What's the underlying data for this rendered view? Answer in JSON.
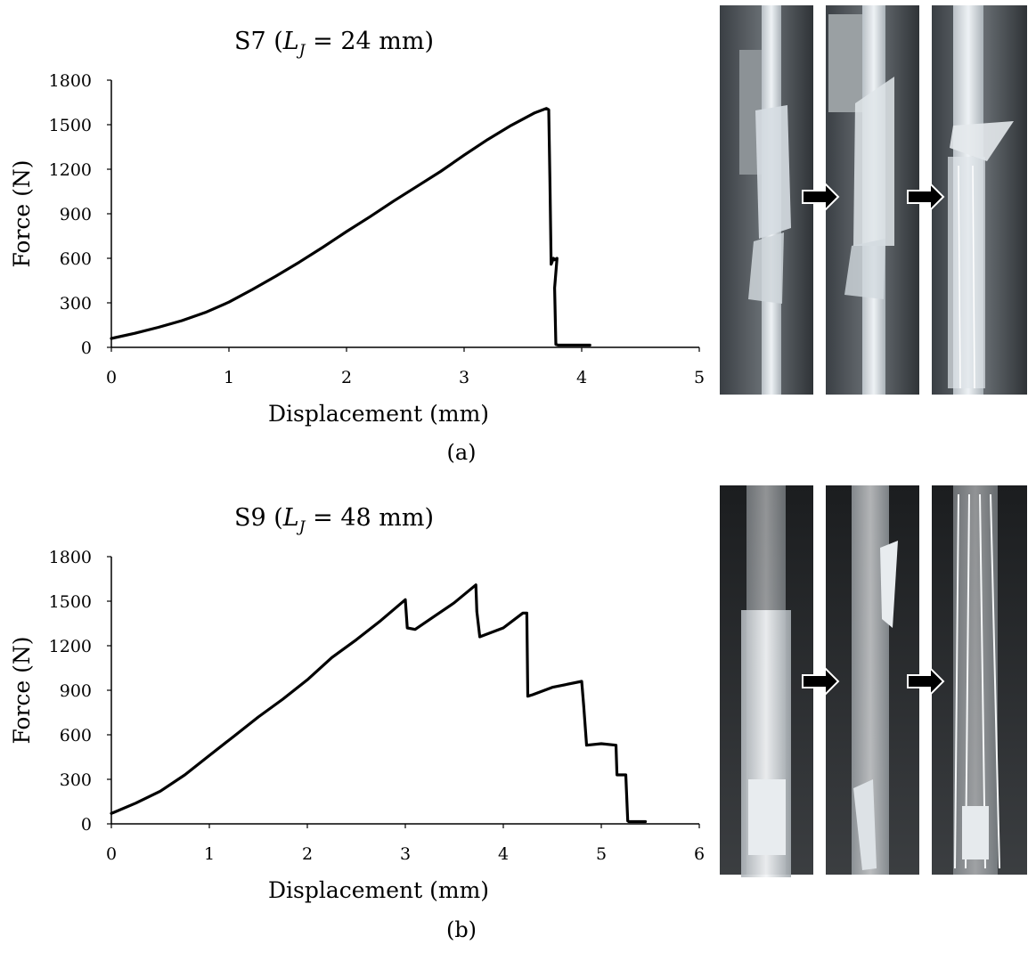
{
  "chart_data": [
    {
      "type": "line",
      "title_main": "S7 (",
      "title_var": "L",
      "title_sub": "J",
      "title_rest": " = 24 mm)",
      "xlabel": "Displacement (mm)",
      "ylabel": "Force (N)",
      "xlim": [
        0,
        5
      ],
      "ylim": [
        0,
        1800
      ],
      "xticks": [
        "0",
        "1",
        "2",
        "3",
        "4",
        "5"
      ],
      "yticks": [
        "0",
        "300",
        "600",
        "900",
        "1200",
        "1500",
        "1800"
      ],
      "grid": false,
      "series": [
        {
          "x": [
            0,
            0.2,
            0.4,
            0.6,
            0.8,
            1.0,
            1.2,
            1.4,
            1.6,
            1.8,
            2.0,
            2.2,
            2.4,
            2.6,
            2.8,
            3.0,
            3.2,
            3.4,
            3.6,
            3.7,
            3.72,
            3.73,
            3.74,
            3.76,
            3.77,
            3.79,
            3.77,
            3.78,
            3.8,
            4.07
          ],
          "y": [
            60,
            95,
            135,
            180,
            235,
            305,
            390,
            480,
            575,
            675,
            780,
            880,
            985,
            1085,
            1185,
            1295,
            1400,
            1495,
            1580,
            1610,
            1600,
            1100,
            560,
            600,
            590,
            600,
            400,
            20,
            15,
            15
          ]
        }
      ]
    },
    {
      "type": "line",
      "title_main": "S9 (",
      "title_var": "L",
      "title_sub": "J",
      "title_rest": " = 48 mm)",
      "xlabel": "Displacement (mm)",
      "ylabel": "Force (N)",
      "xlim": [
        0,
        6
      ],
      "ylim": [
        0,
        1800
      ],
      "xticks": [
        "0",
        "1",
        "2",
        "3",
        "4",
        "5",
        "6"
      ],
      "yticks": [
        "0",
        "300",
        "600",
        "900",
        "1200",
        "1500",
        "1800"
      ],
      "grid": false,
      "series": [
        {
          "x": [
            0,
            0.25,
            0.5,
            0.75,
            1.0,
            1.25,
            1.5,
            1.75,
            2.0,
            2.25,
            2.5,
            2.75,
            3.0,
            3.02,
            3.1,
            3.3,
            3.5,
            3.72,
            3.73,
            3.76,
            4.0,
            4.2,
            4.24,
            4.25,
            4.3,
            4.5,
            4.8,
            4.82,
            4.85,
            5.0,
            5.15,
            5.16,
            5.25,
            5.27,
            5.28,
            5.45
          ],
          "y": [
            70,
            140,
            220,
            330,
            460,
            590,
            720,
            840,
            970,
            1120,
            1240,
            1370,
            1510,
            1320,
            1310,
            1400,
            1490,
            1610,
            1430,
            1260,
            1320,
            1420,
            1420,
            860,
            870,
            920,
            960,
            800,
            530,
            540,
            530,
            330,
            330,
            20,
            15,
            15
          ]
        }
      ]
    }
  ],
  "captions": [
    "(a)",
    "(b)"
  ],
  "colors": {
    "line": "#000000",
    "axis": "#000000"
  }
}
